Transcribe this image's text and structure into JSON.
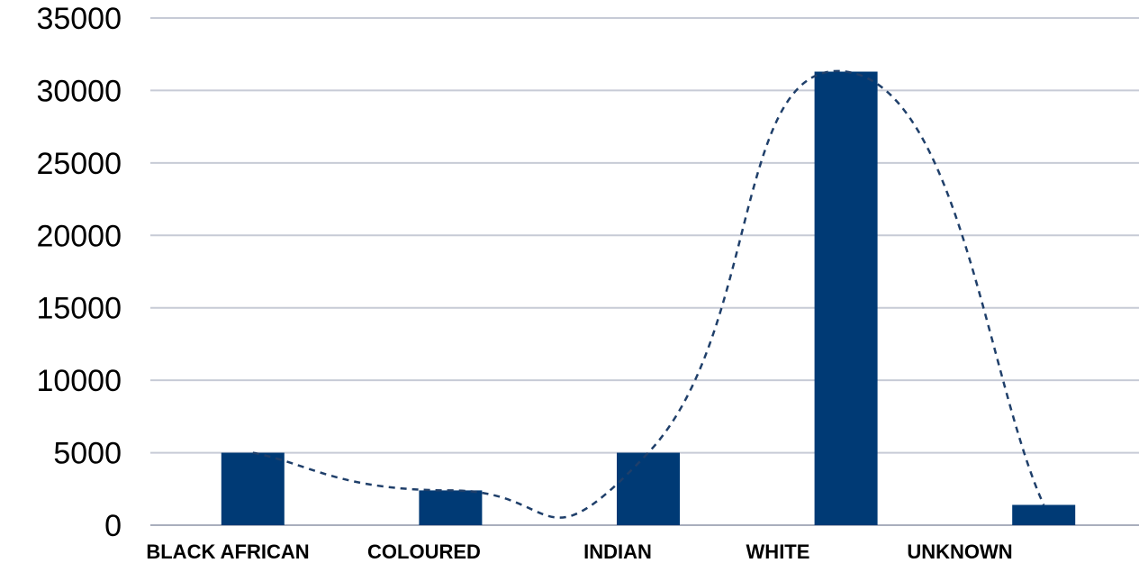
{
  "chart_data": {
    "type": "bar",
    "categories": [
      "BLACK AFRICAN",
      "COLOURED",
      "INDIAN",
      "WHITE",
      "UNKNOWN"
    ],
    "values": [
      5000,
      2400,
      5000,
      31300,
      1400
    ],
    "ylim": [
      0,
      35000
    ],
    "yticks": [
      "0",
      "5000",
      "10000",
      "15000",
      "20000",
      "25000",
      "30000",
      "35000"
    ],
    "grid": true,
    "trendline": {
      "style": "dashed",
      "smooth": true
    },
    "colors": {
      "bar": "#003a75",
      "grid": "#c7cbd6",
      "trendline": "#1f3f6a",
      "axis": "#a9afbd"
    }
  }
}
